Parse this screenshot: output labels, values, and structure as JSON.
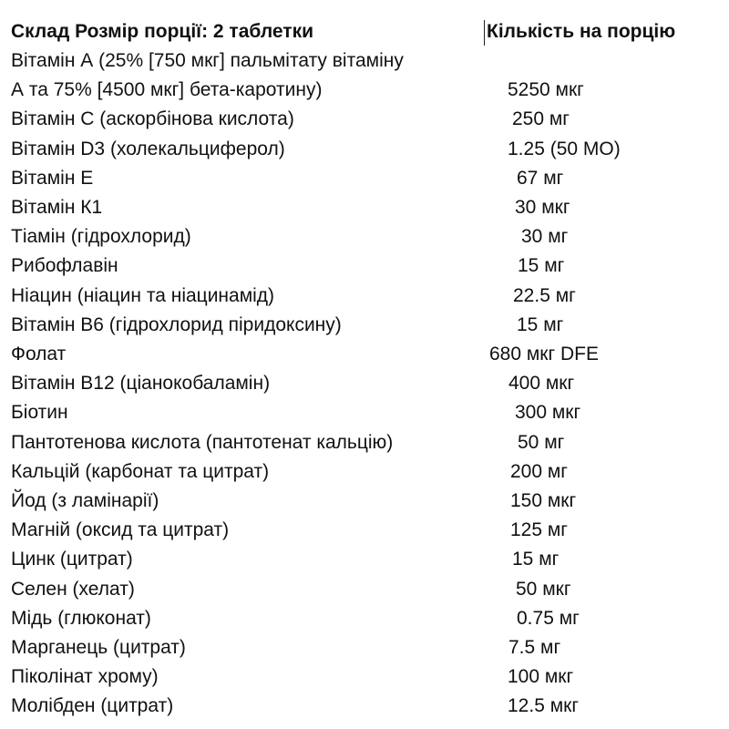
{
  "header": {
    "title": "Склад Розмір порції: 2 таблетки",
    "amount_label": "Кількість на порцію"
  },
  "rows": [
    {
      "name": "Вітамін А (25% [750 мкг] пальмітату вітаміну",
      "amount": ""
    },
    {
      "name": "А та 75% [4500 мкг] бета-каротину)",
      "amount": "5250 мкг"
    },
    {
      "name": "Вітамін С (аскорбінова кислота)",
      "amount": "250 мг"
    },
    {
      "name": "Вітамін D3 (холекальциферол)",
      "amount": "1.25 (50 МО)"
    },
    {
      "name": "Вітамін Е",
      "amount": "67 мг"
    },
    {
      "name": "Вітамін К1",
      "amount": "30 мкг"
    },
    {
      "name": "Тіамін (гідрохлорид)",
      "amount": "30 мг"
    },
    {
      "name": "Рибофлавін",
      "amount": "15 мг"
    },
    {
      "name": "Ніацин (ніацин та ніацинамід)",
      "amount": "22.5 мг"
    },
    {
      "name": "Вітамін В6 (гідрохлорид піридоксину)",
      "amount": "15 мг"
    },
    {
      "name": "Фолат",
      "amount": "680 мкг DFE"
    },
    {
      "name": "Вітамін В12 (ціанокобаламін)",
      "amount": "400 мкг"
    },
    {
      "name": "Біотин",
      "amount": "300 мкг"
    },
    {
      "name": "Пантотенова кислота (пантотенат кальцію)",
      "amount": "50 мг"
    },
    {
      "name": "Кальцій (карбонат та цитрат)",
      "amount": "200 мг"
    },
    {
      "name": "Йод (з ламінарії)",
      "amount": "150 мкг"
    },
    {
      "name": "Магній (оксид та цитрат)",
      "amount": "125 мг"
    },
    {
      "name": "Цинк (цитрат)",
      "amount": "15 мг"
    },
    {
      "name": "Селен (хелат)",
      "amount": "50 мкг"
    },
    {
      "name": "Мідь (глюконат)",
      "amount": "0.75 мг"
    },
    {
      "name": "Марганець (цитрат)",
      "amount": "7.5 мг"
    },
    {
      "name": "Піколінат хрому)",
      "amount": "100 мкг"
    },
    {
      "name": "Молібден (цитрат)",
      "amount": "12.5 мкг"
    }
  ]
}
